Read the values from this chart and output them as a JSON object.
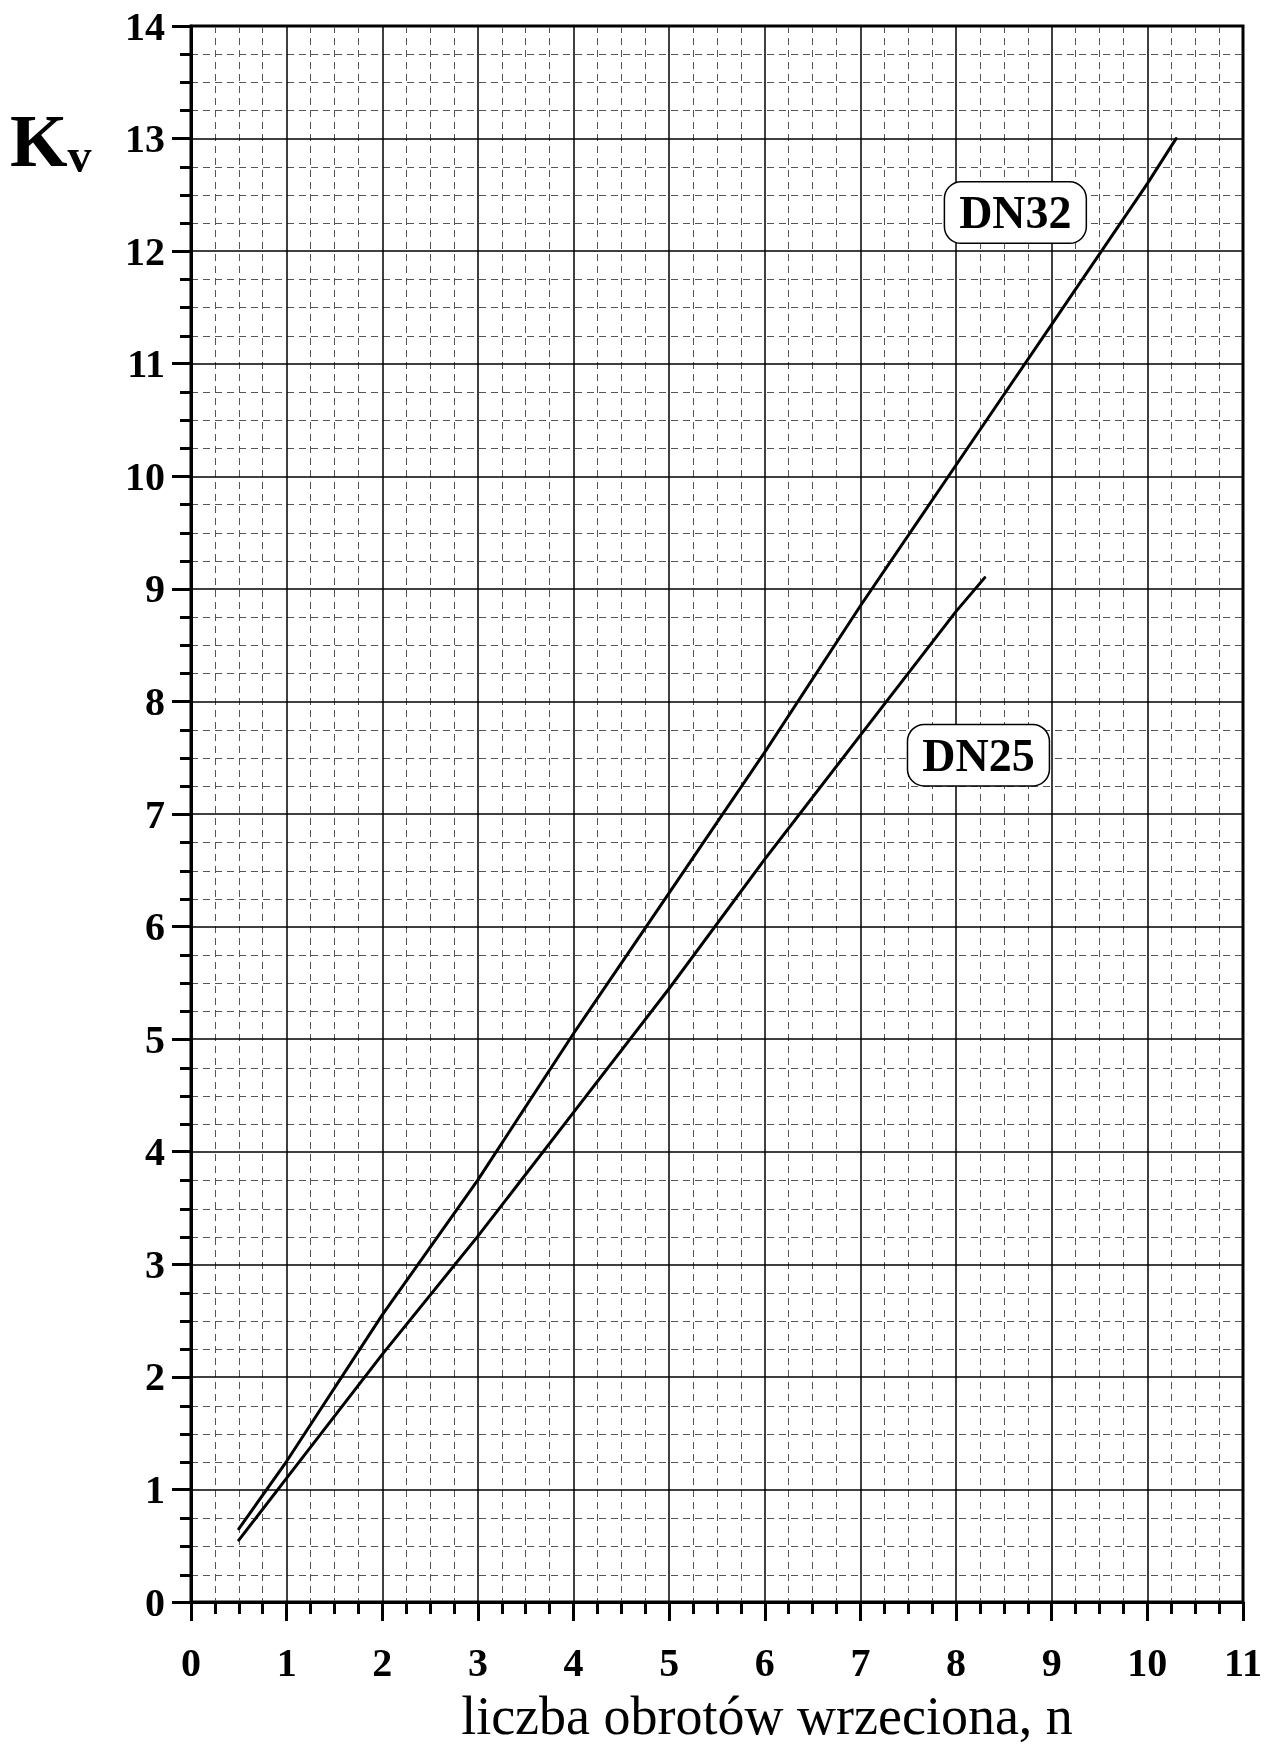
{
  "chart_data": {
    "type": "line",
    "xlabel": "liczba obrotów wrzeciona, n",
    "ylabel": "K$_{v}$",
    "xlim": [
      0,
      11
    ],
    "ylim": [
      0,
      14
    ],
    "xticks": [
      0,
      {
        "value": 0.25,
        "label": null
      },
      {
        "value": 0.5,
        "label": null
      },
      {
        "value": 0.75,
        "label": null
      },
      1,
      {
        "value": 1.25,
        "label": null
      },
      {
        "value": 1.5,
        "label": null
      },
      {
        "value": 1.75,
        "label": null
      },
      2,
      {
        "value": 2.25,
        "label": null
      },
      {
        "value": 2.5,
        "label": null
      },
      {
        "value": 2.75,
        "label": null
      },
      3,
      {
        "value": 3.25,
        "label": null
      },
      {
        "value": 3.5,
        "label": null
      },
      {
        "value": 3.75,
        "label": null
      },
      4,
      {
        "value": 4.25,
        "label": null
      },
      {
        "value": 4.5,
        "label": null
      },
      {
        "value": 4.75,
        "label": null
      },
      5,
      {
        "value": 5.25,
        "label": null
      },
      {
        "value": 5.5,
        "label": null
      },
      {
        "value": 5.75,
        "label": null
      },
      6,
      {
        "value": 6.25,
        "label": null
      },
      {
        "value": 6.5,
        "label": null
      },
      {
        "value": 6.75,
        "label": null
      },
      7,
      {
        "value": 7.25,
        "label": null
      },
      {
        "value": 7.5,
        "label": null
      },
      {
        "value": 7.75,
        "label": null
      },
      8,
      {
        "value": 8.25,
        "label": null
      },
      {
        "value": 8.5,
        "label": null
      },
      {
        "value": 8.75,
        "label": null
      },
      9,
      {
        "value": 9.25,
        "label": null
      },
      {
        "value": 9.5,
        "label": null
      },
      {
        "value": 9.75,
        "label": null
      },
      10,
      {
        "value": 10.25,
        "label": null
      },
      {
        "value": 10.5,
        "label": null
      },
      {
        "value": 10.75,
        "label": null
      },
      11
    ],
    "yticks": [
      0,
      {
        "value": 0.25,
        "label": null
      },
      {
        "value": 0.5,
        "label": null
      },
      {
        "value": 0.75,
        "label": null
      },
      1,
      {
        "value": 1.25,
        "label": null
      },
      {
        "value": 1.5,
        "label": null
      },
      {
        "value": 1.75,
        "label": null
      },
      2,
      {
        "value": 2.25,
        "label": null
      },
      {
        "value": 2.5,
        "label": null
      },
      {
        "value": 2.75,
        "label": null
      },
      3,
      {
        "value": 3.25,
        "label": null
      },
      {
        "value": 3.5,
        "label": null
      },
      {
        "value": 3.75,
        "label": null
      },
      4,
      {
        "value": 4.25,
        "label": null
      },
      {
        "value": 4.5,
        "label": null
      },
      {
        "value": 4.75,
        "label": null
      },
      5,
      {
        "value": 5.25,
        "label": null
      },
      {
        "value": 5.5,
        "label": null
      },
      {
        "value": 5.75,
        "label": null
      },
      6,
      {
        "value": 6.25,
        "label": null
      },
      {
        "value": 6.5,
        "label": null
      },
      {
        "value": 6.75,
        "label": null
      },
      7,
      {
        "value": 7.25,
        "label": null
      },
      {
        "value": 7.5,
        "label": null
      },
      {
        "value": 7.75,
        "label": null
      },
      8,
      {
        "value": 8.25,
        "label": null
      },
      {
        "value": 8.5,
        "label": null
      },
      {
        "value": 8.75,
        "label": null
      },
      9,
      {
        "value": 9.25,
        "label": null
      },
      {
        "value": 9.5,
        "label": null
      },
      {
        "value": 9.75,
        "label": null
      },
      10,
      {
        "value": 10.25,
        "label": null
      },
      {
        "value": 10.5,
        "label": null
      },
      {
        "value": 10.75,
        "label": null
      },
      11,
      {
        "value": 11.25,
        "label": null
      },
      {
        "value": 11.5,
        "label": null
      },
      {
        "value": 11.75,
        "label": null
      },
      12,
      {
        "value": 12.25,
        "label": null
      },
      {
        "value": 12.5,
        "label": null
      },
      {
        "value": 12.75,
        "label": null
      },
      13,
      {
        "value": 13.25,
        "label": null
      },
      {
        "value": 13.5,
        "label": null
      },
      {
        "value": 13.75,
        "label": null
      },
      14
    ],
    "grid": true,
    "marker": "none",
    "line_style": "solid",
    "series": [
      {
        "name": "DN32",
        "color": "#000000",
        "x": [
          0.5,
          1,
          2,
          3,
          4,
          5,
          6,
          7,
          8,
          9,
          10,
          10.3
        ],
        "values": [
          0.65,
          1.25,
          2.55,
          3.75,
          5.05,
          6.3,
          7.55,
          8.85,
          10.1,
          11.35,
          12.6,
          13.0
        ]
      },
      {
        "name": "DN25",
        "color": "#000000",
        "x": [
          0.5,
          1,
          2,
          3,
          4,
          5,
          6,
          7,
          8,
          8.3
        ],
        "values": [
          0.55,
          1.1,
          2.2,
          3.25,
          4.35,
          5.45,
          6.6,
          7.7,
          8.8,
          9.1
        ]
      }
    ]
  }
}
